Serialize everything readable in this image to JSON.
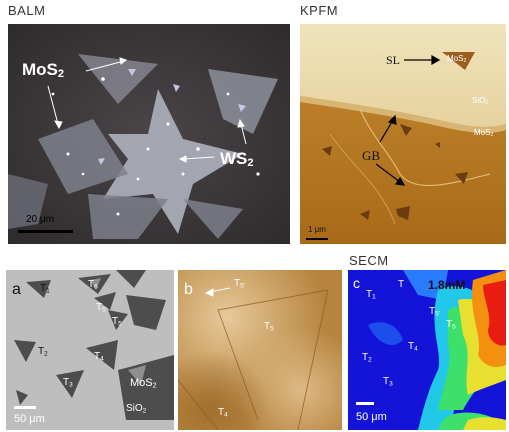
{
  "titles": {
    "balm": "BALM",
    "kpfm": "KPFM",
    "secm": "SECM"
  },
  "balm": {
    "mos2_label": "MoS",
    "mos2_sub": "2",
    "ws2_label": "WS",
    "ws2_sub": "2",
    "scale_label": "20 μm"
  },
  "kpfm": {
    "sl_label": "SL",
    "mos2_top_label": "MoS",
    "mos2_top_sub": "2",
    "sio2_label": "SiO",
    "sio2_sub": "2",
    "mos2_right_label": "MoS",
    "mos2_right_sub": "2",
    "gb_label": "GB",
    "scale_label": "1 μm"
  },
  "panel_a": {
    "letter": "a",
    "t1": "T",
    "t1_sub": "1",
    "t2": "T",
    "t2_sub": "2",
    "t3": "T",
    "t3_sub": "3",
    "t4": "T",
    "t4_sub": "4",
    "t5": "T",
    "t5_sub": "5",
    "t5p": "T",
    "t5p_sub": "5'",
    "t6": "T",
    "t6_sub": "6",
    "mos2": "MoS",
    "mos2_sub": "2",
    "sio2": "SiO",
    "sio2_sub": "2",
    "scale_label": "50 μm"
  },
  "panel_b": {
    "letter": "b",
    "t5p": "T",
    "t5p_sub": "5'",
    "t5": "T",
    "t5_sub": "5",
    "t4": "T",
    "t4_sub": "4"
  },
  "panel_c": {
    "letter": "c",
    "t1": "T",
    "t1_sub": "1",
    "t_top": "T",
    "t5p": "T",
    "t5p_sub": "5'",
    "t5": "T",
    "t5_sub": "5",
    "t2": "T",
    "t2_sub": "2",
    "t4": "T",
    "t4_sub": "4",
    "t3": "T",
    "t3_sub": "3",
    "conc": "1.8mM",
    "scale_label": "50 μm"
  },
  "colors": {
    "balm_bg": "#3e3a3d",
    "kpfm_light": "#eadcae",
    "kpfm_dark": "#b8781f",
    "secm_blue": "#1414d8",
    "secm_red": "#e81c10"
  }
}
